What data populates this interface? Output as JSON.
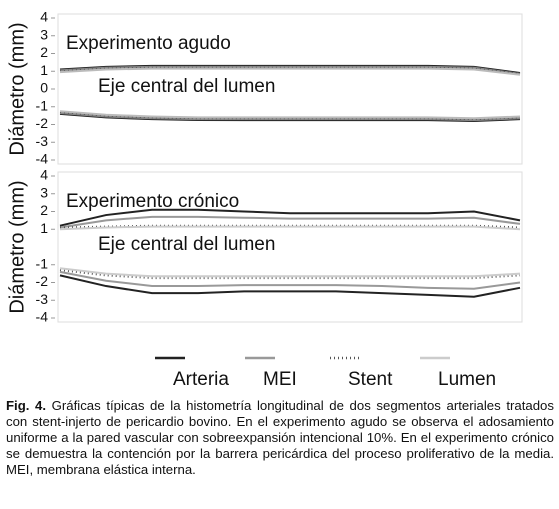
{
  "chart_data": [
    {
      "type": "line",
      "y_label": "Diámetro (mm)",
      "annotations": [
        "Experimento agudo",
        "Eje central del lumen"
      ],
      "ylim": [
        -4,
        4
      ],
      "yticks": [
        4,
        3,
        2,
        1,
        0,
        -1,
        -2,
        -3,
        -4
      ],
      "series": [
        {
          "color": "#222222",
          "dash": "none",
          "upper": [
            1.1,
            1.25,
            1.3,
            1.3,
            1.3,
            1.3,
            1.3,
            1.3,
            1.3,
            1.25,
            0.9
          ],
          "lower": [
            -1.4,
            -1.6,
            -1.7,
            -1.75,
            -1.75,
            -1.75,
            -1.75,
            -1.75,
            -1.75,
            -1.8,
            -1.7
          ]
        },
        {
          "color": "#888888",
          "dash": "none",
          "upper": [
            1.05,
            1.2,
            1.25,
            1.25,
            1.25,
            1.25,
            1.25,
            1.25,
            1.25,
            1.2,
            0.85
          ],
          "lower": [
            -1.35,
            -1.55,
            -1.65,
            -1.7,
            -1.7,
            -1.7,
            -1.7,
            -1.7,
            -1.7,
            -1.75,
            -1.65
          ]
        },
        {
          "color": "#555555",
          "dash": "1 3",
          "upper": [
            1.0,
            1.15,
            1.2,
            1.2,
            1.2,
            1.2,
            1.2,
            1.2,
            1.2,
            1.15,
            0.85
          ],
          "lower": [
            -1.3,
            -1.5,
            -1.6,
            -1.65,
            -1.65,
            -1.65,
            -1.65,
            -1.65,
            -1.65,
            -1.7,
            -1.6
          ]
        },
        {
          "color": "#bbbbbb",
          "dash": "none",
          "upper": [
            0.95,
            1.1,
            1.15,
            1.15,
            1.15,
            1.15,
            1.15,
            1.15,
            1.15,
            1.1,
            0.8
          ],
          "lower": [
            -1.25,
            -1.45,
            -1.55,
            -1.6,
            -1.6,
            -1.6,
            -1.6,
            -1.6,
            -1.6,
            -1.65,
            -1.55
          ]
        }
      ]
    },
    {
      "type": "line",
      "y_label": "Diámetro (mm)",
      "annotations": [
        "Experimento crónico",
        "Eje central del lumen"
      ],
      "ylim": [
        -4,
        4
      ],
      "yticks": [
        4,
        3,
        2,
        1,
        -1,
        -2,
        -3,
        -4
      ],
      "series": [
        {
          "name": "Arteria",
          "color": "#222222",
          "dash": "none",
          "upper": [
            1.2,
            1.8,
            2.1,
            2.1,
            2.0,
            1.9,
            1.9,
            1.9,
            1.9,
            2.0,
            1.5
          ],
          "lower": [
            -1.6,
            -2.2,
            -2.6,
            -2.6,
            -2.5,
            -2.5,
            -2.5,
            -2.6,
            -2.7,
            -2.8,
            -2.3
          ]
        },
        {
          "name": "MEI",
          "color": "#999999",
          "dash": "none",
          "upper": [
            1.1,
            1.5,
            1.7,
            1.7,
            1.65,
            1.6,
            1.6,
            1.6,
            1.6,
            1.65,
            1.3
          ],
          "lower": [
            -1.4,
            -1.9,
            -2.2,
            -2.2,
            -2.15,
            -2.15,
            -2.15,
            -2.2,
            -2.3,
            -2.35,
            -2.0
          ]
        },
        {
          "name": "Stent",
          "color": "#555555",
          "dash": "1 3",
          "upper": [
            1.1,
            1.15,
            1.2,
            1.2,
            1.2,
            1.2,
            1.2,
            1.2,
            1.2,
            1.2,
            1.1
          ],
          "lower": [
            -1.3,
            -1.6,
            -1.75,
            -1.75,
            -1.75,
            -1.75,
            -1.75,
            -1.75,
            -1.75,
            -1.75,
            -1.6
          ]
        },
        {
          "name": "Lumen",
          "color": "#cccccc",
          "dash": "none",
          "upper": [
            1.0,
            1.1,
            1.15,
            1.15,
            1.15,
            1.15,
            1.15,
            1.15,
            1.15,
            1.15,
            1.0
          ],
          "lower": [
            -1.2,
            -1.5,
            -1.65,
            -1.65,
            -1.65,
            -1.65,
            -1.65,
            -1.65,
            -1.65,
            -1.65,
            -1.5
          ]
        }
      ]
    }
  ],
  "caption": {
    "label": "Fig. 4.",
    "text": "Gráficas típicas de la histometría longitudinal de dos segmentos arteriales tratados con stent-injerto de pericardio bovino. En el experimento agudo se observa el adosamiento uniforme a la pared vascular con sobreexpansión intencional 10%. En el experimento crónico se demuestra la contención por la barrera pericárdica del proceso proliferativo de la media. MEI, membrana elástica interna."
  }
}
